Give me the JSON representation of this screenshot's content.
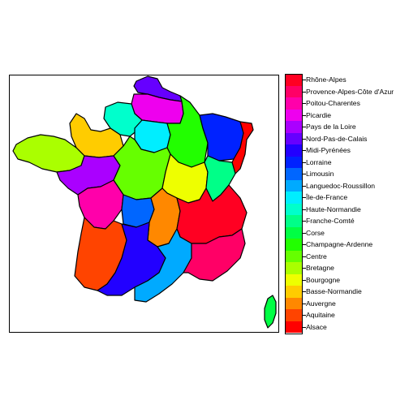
{
  "map": {
    "regions": [
      {
        "name": "Rhône-Alpes",
        "color": "#FF0022"
      },
      {
        "name": "Provence-Alpes-Côte d'Azur",
        "color": "#FF0066"
      },
      {
        "name": "Poitou-Charentes",
        "color": "#FF00AA"
      },
      {
        "name": "Picardie",
        "color": "#EE00EE"
      },
      {
        "name": "Pays de la Loire",
        "color": "#AA00FF"
      },
      {
        "name": "Nord-Pas-de-Calais",
        "color": "#6600FF"
      },
      {
        "name": "Midi-Pyrénées",
        "color": "#2200FF"
      },
      {
        "name": "Lorraine",
        "color": "#0022FF"
      },
      {
        "name": "Limousin",
        "color": "#0066FF"
      },
      {
        "name": "Languedoc-Roussillon",
        "color": "#00AAFF"
      },
      {
        "name": "Île-de-France",
        "color": "#00EEFF"
      },
      {
        "name": "Haute-Normandie",
        "color": "#00FFCC"
      },
      {
        "name": "Franche-Comté",
        "color": "#00FF88"
      },
      {
        "name": "Corse",
        "color": "#00FF44"
      },
      {
        "name": "Champagne-Ardenne",
        "color": "#22FF00"
      },
      {
        "name": "Centre",
        "color": "#66FF00"
      },
      {
        "name": "Bretagne",
        "color": "#AAFF00"
      },
      {
        "name": "Bourgogne",
        "color": "#EEFF00"
      },
      {
        "name": "Basse-Normandie",
        "color": "#FFCC00"
      },
      {
        "name": "Auvergne",
        "color": "#FF8800"
      },
      {
        "name": "Aquitaine",
        "color": "#FF4400"
      },
      {
        "name": "Alsace",
        "color": "#FF0000"
      }
    ]
  },
  "legend": {
    "items": [
      "Rhône-Alpes",
      "Provence-Alpes-Côte d'Azur",
      "Poitou-Charentes",
      "Picardie",
      "Pays de la Loire",
      "Nord-Pas-de-Calais",
      "Midi-Pyrénées",
      "Lorraine",
      "Limousin",
      "Languedoc-Roussillon",
      "Île-de-France",
      "Haute-Normandie",
      "Franche-Comté",
      "Corse",
      "Champagne-Ardenne",
      "Centre",
      "Bretagne",
      "Bourgogne",
      "Basse-Normandie",
      "Auvergne",
      "Aquitaine",
      "Alsace"
    ]
  }
}
